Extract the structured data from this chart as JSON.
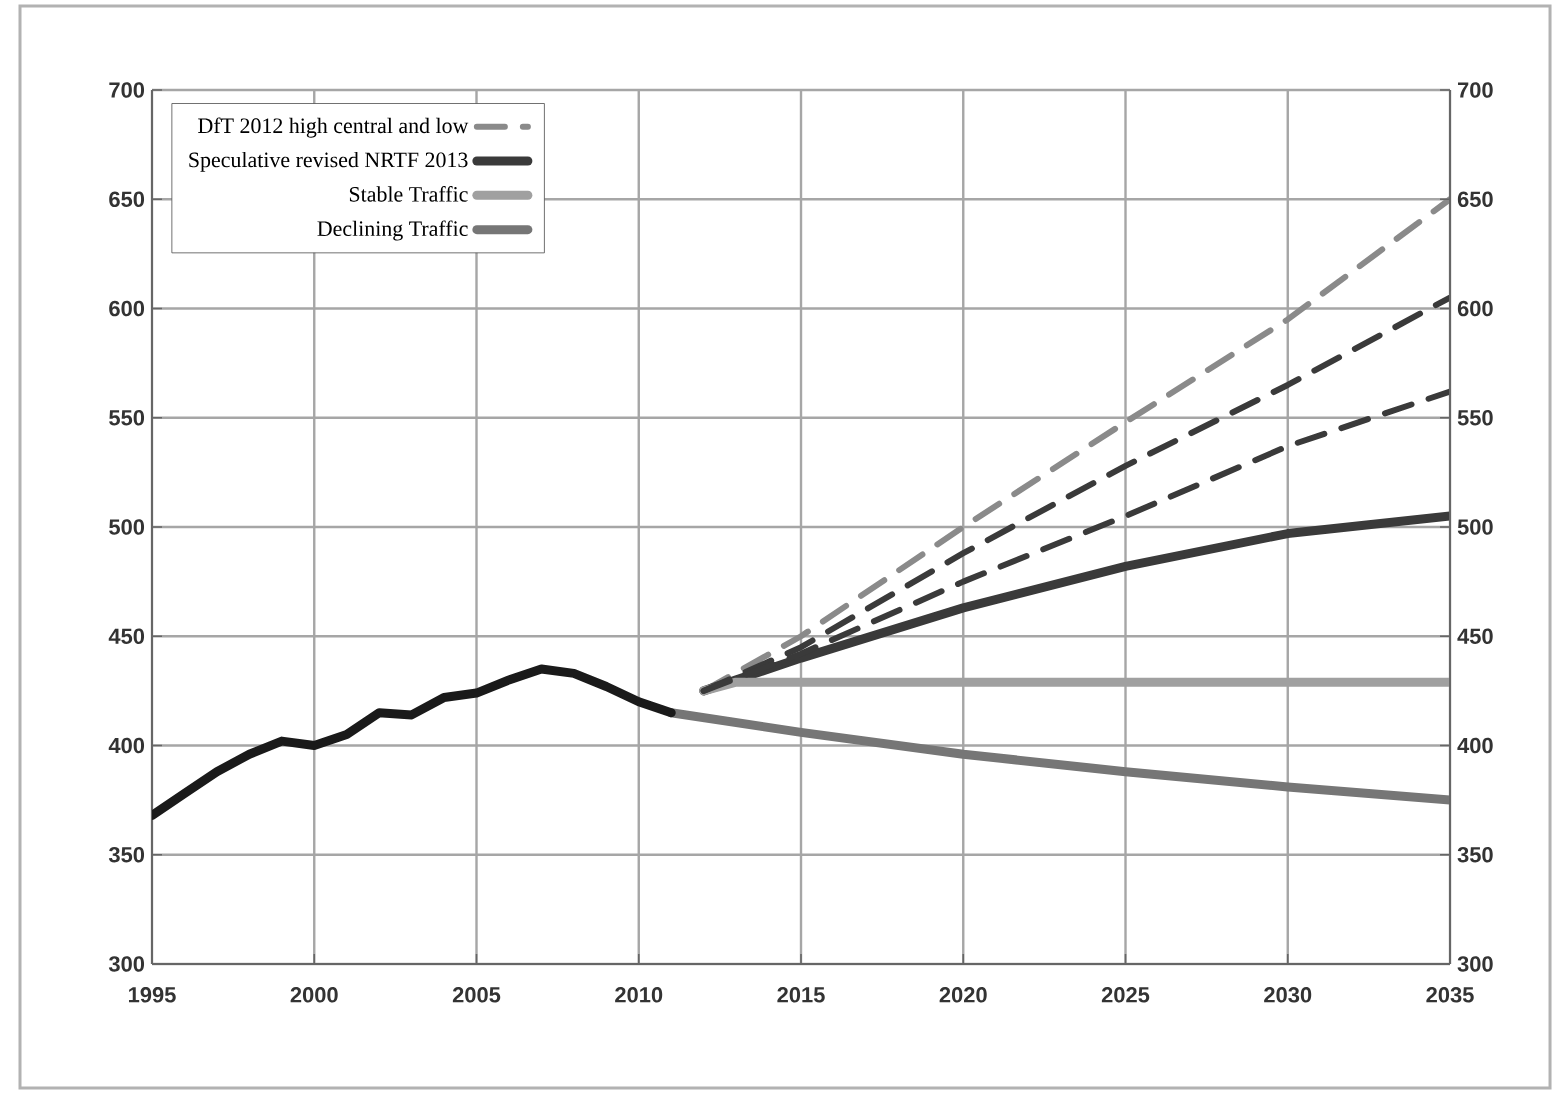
{
  "chart_data": {
    "type": "line",
    "xlim": [
      1995,
      2035
    ],
    "xticks": [
      1995,
      2000,
      2005,
      2010,
      2015,
      2020,
      2025,
      2030,
      2035
    ],
    "ylim": [
      300,
      700
    ],
    "yticks": [
      300,
      350,
      400,
      450,
      500,
      550,
      600,
      650,
      700
    ],
    "y2lim": [
      300,
      700
    ],
    "y2ticks": [
      300,
      350,
      400,
      450,
      500,
      550,
      600,
      650,
      700
    ],
    "grid": true,
    "legend": "top left",
    "series": [
      {
        "name": "DfT 2012 high central and low",
        "color": "#8a8a8a",
        "line_style": "dashed",
        "x": [
          2012,
          2015,
          2020,
          2025,
          2030,
          2035
        ],
        "values": [
          425,
          450,
          500,
          548,
          595,
          650
        ]
      },
      {
        "name": "Speculative revised NRTF 2013",
        "color": "#3a3a3a",
        "line_style": "solid",
        "x": [
          2012,
          2015,
          2020,
          2025,
          2030,
          2035
        ],
        "values": [
          425,
          440,
          463,
          482,
          497,
          505
        ]
      },
      {
        "name": "Stable Traffic",
        "color": "#a0a0a0",
        "line_style": "solid",
        "x": [
          2012,
          2013,
          2035
        ],
        "values": [
          425,
          429,
          429
        ]
      },
      {
        "name": "Declining Traffic",
        "color": "#767676",
        "line_style": "solid",
        "x": [
          2011,
          2015,
          2020,
          2025,
          2030,
          2035
        ],
        "values": [
          415,
          406,
          396,
          388,
          381,
          375
        ]
      },
      {
        "color": "#3a3a3a",
        "line_style": "dashed",
        "x": [
          2012,
          2015,
          2020,
          2025,
          2030,
          2035
        ],
        "values": [
          425,
          445,
          488,
          528,
          565,
          605
        ]
      },
      {
        "color": "#3a3a3a",
        "line_style": "dashed",
        "x": [
          2012,
          2015,
          2020,
          2025,
          2030,
          2035
        ],
        "values": [
          425,
          442,
          475,
          505,
          537,
          562
        ]
      },
      {
        "color": "#1a1a1a",
        "line_style": "solid",
        "x": [
          1995,
          1996,
          1997,
          1998,
          1999,
          2000,
          2001,
          2002,
          2003,
          2004,
          2005,
          2006,
          2007,
          2008,
          2009,
          2010,
          2011
        ],
        "values": [
          368,
          378,
          388,
          396,
          402,
          400,
          405,
          415,
          414,
          422,
          424,
          430,
          435,
          433,
          427,
          420,
          415
        ]
      }
    ]
  }
}
